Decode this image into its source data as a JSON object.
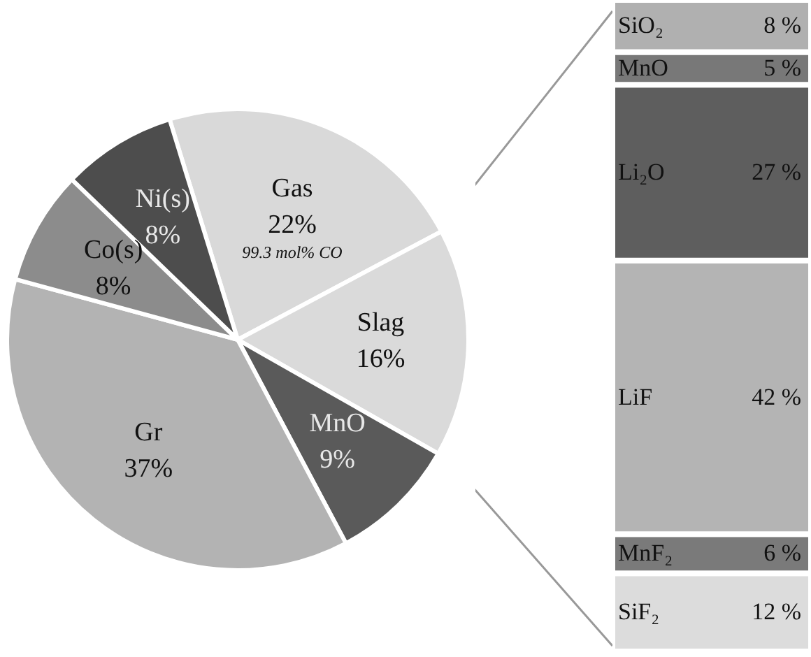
{
  "chart_data": [
    {
      "type": "pie",
      "categories": [
        "Gas",
        "Slag",
        "MnO",
        "Gr",
        "Co(s)",
        "Ni(s)"
      ],
      "values": [
        22,
        16,
        9,
        37,
        8,
        8
      ],
      "value_labels": [
        "22%",
        "16%",
        "9%",
        "37%",
        "8%",
        "8%"
      ],
      "colors": [
        "#d9d9d9",
        "#dadada",
        "#5a5a5a",
        "#b3b3b3",
        "#8c8c8c",
        "#4d4d4d"
      ],
      "annotations": [
        {
          "text": "99.3 mol% CO",
          "x": "Gas"
        }
      ]
    },
    {
      "type": "bar",
      "stacked": true,
      "categories": [
        null
      ],
      "series": [
        {
          "name": "SiF₂",
          "color": "#dcdcdc",
          "values": [
            12
          ],
          "value_labels": [
            "12 %"
          ]
        },
        {
          "name": "MnF₂",
          "color": "#7a7a7a",
          "values": [
            6
          ],
          "value_labels": [
            "6 %"
          ]
        },
        {
          "name": "LiF",
          "color": "#b4b4b4",
          "values": [
            42
          ],
          "value_labels": [
            "42 %"
          ]
        },
        {
          "name": "Li₂O",
          "color": "#5e5e5e",
          "values": [
            27
          ],
          "value_labels": [
            "27 %"
          ]
        },
        {
          "name": "MnO",
          "color": "#787878",
          "values": [
            5
          ],
          "value_labels": [
            "5 %"
          ]
        },
        {
          "name": "SiO₂",
          "color": "#b0b0b0",
          "values": [
            8
          ],
          "value_labels": [
            "8 %"
          ]
        }
      ]
    }
  ]
}
